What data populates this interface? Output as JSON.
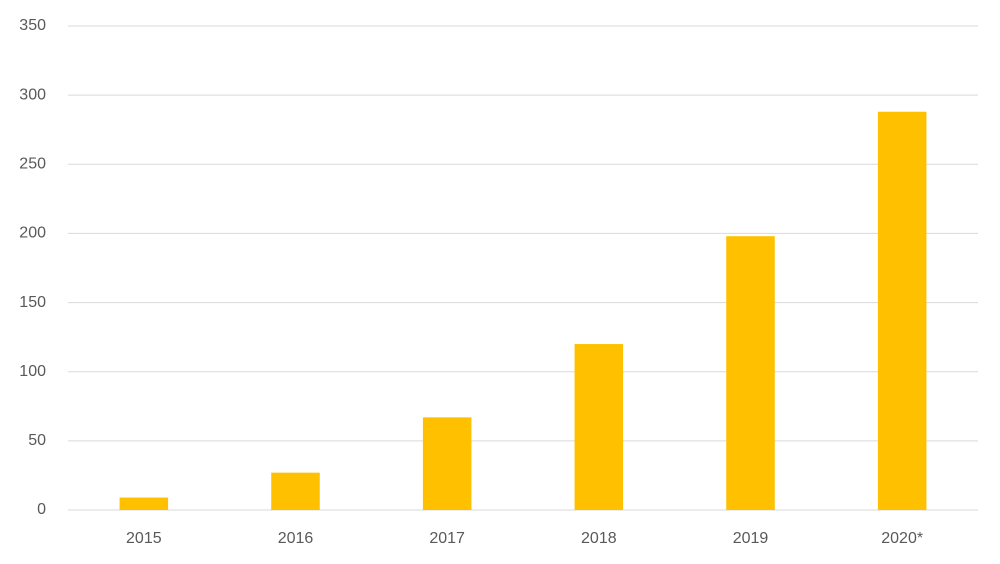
{
  "chart_data": {
    "type": "bar",
    "categories": [
      "2015",
      "2016",
      "2017",
      "2018",
      "2019",
      "2020*"
    ],
    "values": [
      9,
      27,
      67,
      120,
      198,
      288
    ],
    "color": "#ffc000",
    "ylim": [
      0,
      350
    ],
    "yticks": [
      0,
      50,
      100,
      150,
      200,
      250,
      300,
      350
    ],
    "grid": true
  }
}
